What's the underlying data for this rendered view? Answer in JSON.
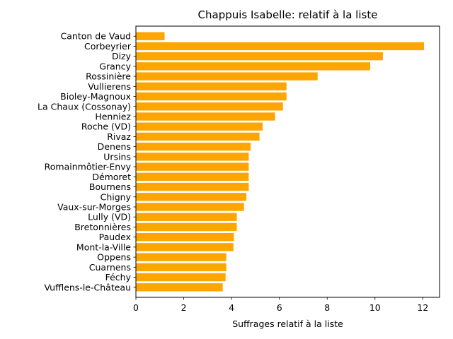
{
  "chart_data": {
    "type": "bar",
    "orientation": "horizontal",
    "title": "Chappuis Isabelle: relatif à la liste",
    "xlabel": "Suffrages relatif à la liste",
    "ylabel": "",
    "xlim": [
      0,
      12.7
    ],
    "xticks": [
      0,
      2,
      4,
      6,
      8,
      10,
      12
    ],
    "bar_color": "#ffa500",
    "grid": false,
    "categories": [
      "Canton de Vaud",
      "Corbeyrier",
      "Dizy",
      "Grancy",
      "Rossinière",
      "Vullierens",
      "Bioley-Magnoux",
      "La Chaux (Cossonay)",
      "Henniez",
      "Roche (VD)",
      "Rivaz",
      "Denens",
      "Ursins",
      "Romainmôtier-Envy",
      "Démoret",
      "Bournens",
      "Chigny",
      "Vaux-sur-Morges",
      "Lully (VD)",
      "Bretonnières",
      "Paudex",
      "Mont-la-Ville",
      "Oppens",
      "Cuarnens",
      "Féchy",
      "Vufflens-le-Château"
    ],
    "values": [
      1.2,
      12.05,
      10.33,
      9.8,
      7.6,
      6.3,
      6.3,
      6.15,
      5.82,
      5.3,
      5.17,
      4.8,
      4.72,
      4.72,
      4.72,
      4.72,
      4.62,
      4.52,
      4.22,
      4.22,
      4.1,
      4.08,
      3.78,
      3.78,
      3.75,
      3.63
    ]
  }
}
